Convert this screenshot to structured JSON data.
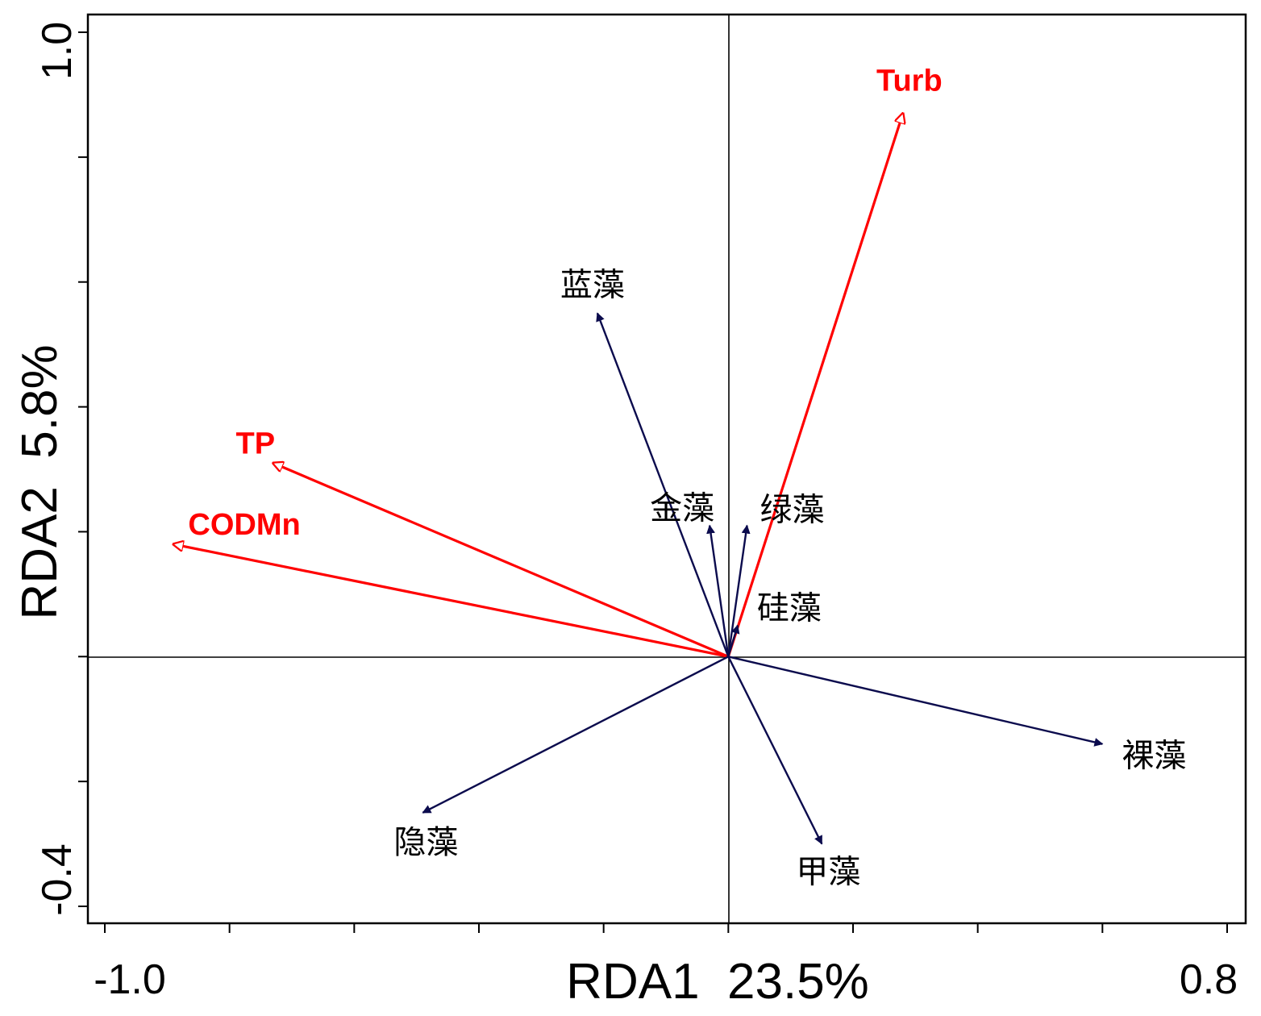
{
  "chart_data": {
    "type": "scatter",
    "subtype": "rda-biplot",
    "xlabel": "RDA1  23.5%",
    "ylabel": "RDA2  5.8%",
    "xlim": [
      -1.0,
      0.8
    ],
    "ylim": [
      -0.4,
      1.0
    ],
    "x_tick_labels": [
      "-1.0",
      "0.8"
    ],
    "y_tick_labels": [
      "1.0",
      "-0.4"
    ],
    "x_ticks": [
      -1.0,
      -0.8,
      -0.6,
      -0.4,
      -0.2,
      0.0,
      0.2,
      0.4,
      0.6,
      0.8
    ],
    "y_ticks": [
      -0.4,
      -0.2,
      0.0,
      0.2,
      0.4,
      0.6,
      0.8,
      1.0
    ],
    "colors": {
      "environment": "#ff0000",
      "species": "#0b0b4d",
      "axes": "#000000"
    },
    "environment_vectors": [
      {
        "name": "Turb",
        "x": 0.28,
        "y": 0.87
      },
      {
        "name": "TP",
        "x": -0.73,
        "y": 0.31
      },
      {
        "name": "CODMn",
        "x": -0.89,
        "y": 0.18
      }
    ],
    "species_vectors": [
      {
        "name": "蓝藻",
        "x": -0.21,
        "y": 0.55
      },
      {
        "name": "金藻",
        "x": -0.03,
        "y": 0.21
      },
      {
        "name": "绿藻",
        "x": 0.03,
        "y": 0.21
      },
      {
        "name": "硅藻",
        "x": 0.015,
        "y": 0.05
      },
      {
        "name": "裸藻",
        "x": 0.6,
        "y": -0.14
      },
      {
        "name": "隐藻",
        "x": -0.49,
        "y": -0.25
      },
      {
        "name": "甲藻",
        "x": 0.15,
        "y": -0.3
      }
    ]
  }
}
